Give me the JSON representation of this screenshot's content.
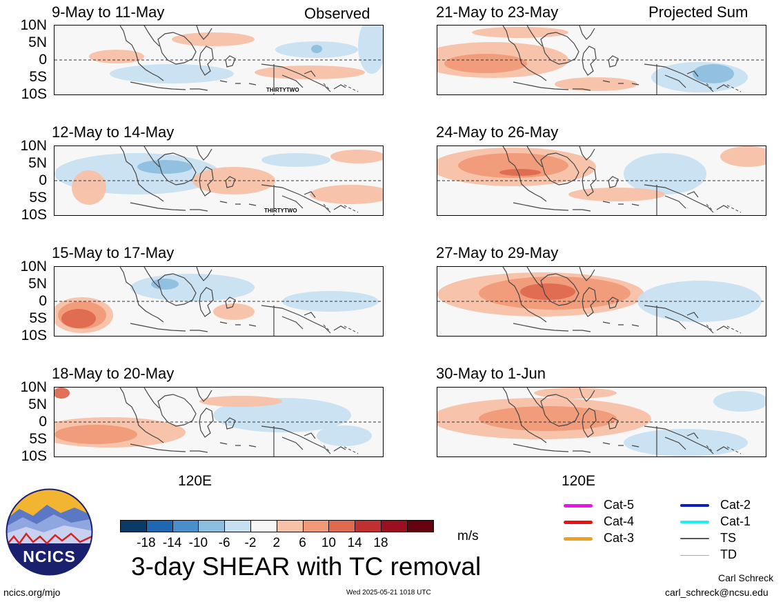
{
  "panels": [
    {
      "period": "9-May to 11-May",
      "tag": "Observed",
      "storm_label": "THIRTYTWO",
      "show_lat": true
    },
    {
      "period": "21-May to 23-May",
      "tag": "Projected Sum",
      "storm_label": "",
      "show_lat": false
    },
    {
      "period": "12-May to 14-May",
      "tag": "",
      "storm_label": "THIRTYTWO",
      "show_lat": true
    },
    {
      "period": "24-May to 26-May",
      "tag": "",
      "storm_label": "",
      "show_lat": false
    },
    {
      "period": "15-May to 17-May",
      "tag": "",
      "storm_label": "",
      "show_lat": true
    },
    {
      "period": "27-May to 29-May",
      "tag": "",
      "storm_label": "",
      "show_lat": false
    },
    {
      "period": "18-May to 20-May",
      "tag": "",
      "storm_label": "",
      "show_lat": true
    },
    {
      "period": "30-May to 1-Jun",
      "tag": "",
      "storm_label": "",
      "show_lat": false
    }
  ],
  "lat_labels": [
    "10N",
    "5N",
    "0",
    "5S",
    "10S"
  ],
  "lon_label": "120E",
  "colorbar": {
    "colors": [
      "#0b3a66",
      "#1f67b0",
      "#4a8fcc",
      "#8ebedf",
      "#c7e0f0",
      "#f7f7f7",
      "#f7c1a6",
      "#f09a78",
      "#de6a50",
      "#c03030",
      "#9a1020",
      "#650010"
    ],
    "labels": [
      "-18",
      "-14",
      "-10",
      "-6",
      "-2",
      "2",
      "6",
      "10",
      "14",
      "18"
    ],
    "units": "m/s"
  },
  "title": "3-day SHEAR with TC removal",
  "logo_text": "NCICS",
  "footer": {
    "url": "ncics.org/mjo",
    "timestamp": "Wed 2025-05-21 1018 UTC",
    "author": "Carl Schreck",
    "email": "carl_schreck@ncsu.edu"
  },
  "tc_legend": [
    {
      "label": "Cat-5",
      "color": "#ee11ee"
    },
    {
      "label": "Cat-4",
      "color": "#ee1111"
    },
    {
      "label": "Cat-3",
      "color": "#f0a020"
    },
    {
      "label": "Cat-2",
      "color": "#1020c0"
    },
    {
      "label": "Cat-1",
      "color": "#22eeee"
    },
    {
      "label": "TS",
      "color": "#555555"
    },
    {
      "label": "TD",
      "color": "#aaaaaa"
    }
  ]
}
